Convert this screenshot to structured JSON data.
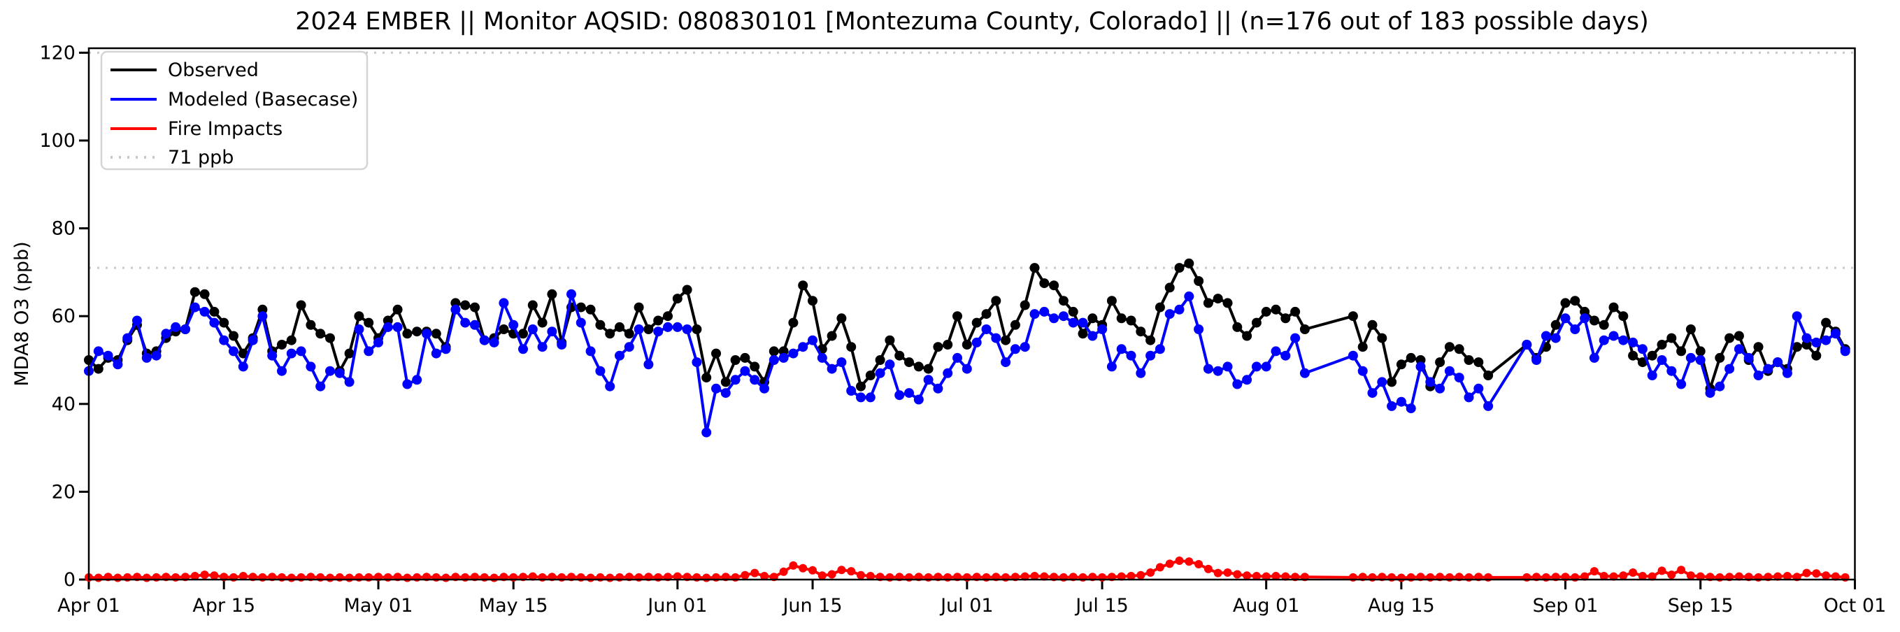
{
  "title": "2024 EMBER || Monitor AQSID: 080830101 [Montezuma County, Colorado] || (n=176 out of 183 possible days)",
  "legend": {
    "items": [
      {
        "label": "Observed",
        "color": "#000000",
        "style": "solid"
      },
      {
        "label": "Modeled (Basecase)",
        "color": "#0000ff",
        "style": "solid"
      },
      {
        "label": "Fire Impacts",
        "color": "#ff0000",
        "style": "solid"
      },
      {
        "label": "71 ppb",
        "color": "#c9c9c9",
        "style": "dotted"
      }
    ]
  },
  "chart_data": {
    "type": "line",
    "title": "2024 EMBER || Monitor AQSID: 080830101 [Montezuma County, Colorado] || (n=176 out of 183 possible days)",
    "xlabel": "",
    "ylabel": "MDA8 O3 (ppb)",
    "ylim": [
      0,
      121
    ],
    "yticks": [
      0,
      20,
      40,
      60,
      80,
      100,
      120
    ],
    "grid": false,
    "legend_position": "upper left",
    "start_date": "Apr 01",
    "end_date": "Oct 01",
    "n_days_plotted": 176,
    "n_days_possible": 183,
    "missing_days": [
      "Aug 06",
      "Aug 07",
      "Aug 08",
      "Aug 09",
      "Aug 25",
      "Aug 26",
      "Aug 27"
    ],
    "xticks": [
      {
        "day": 0,
        "label": "Apr 01"
      },
      {
        "day": 14,
        "label": "Apr 15"
      },
      {
        "day": 30,
        "label": "May 01"
      },
      {
        "day": 44,
        "label": "May 15"
      },
      {
        "day": 61,
        "label": "Jun 01"
      },
      {
        "day": 75,
        "label": "Jun 15"
      },
      {
        "day": 91,
        "label": "Jul 01"
      },
      {
        "day": 105,
        "label": "Jul 15"
      },
      {
        "day": 122,
        "label": "Aug 01"
      },
      {
        "day": 136,
        "label": "Aug 15"
      },
      {
        "day": 153,
        "label": "Sep 01"
      },
      {
        "day": 167,
        "label": "Sep 15"
      },
      {
        "day": 183,
        "label": "Oct 01"
      }
    ],
    "reference_lines": [
      {
        "value": 71,
        "label": "71 ppb",
        "color": "#c9c9c9",
        "style": "dotted"
      },
      {
        "value": 120,
        "label": "",
        "color": "#c9c9c9",
        "style": "dotted"
      }
    ],
    "series": [
      {
        "name": "Observed",
        "color": "#000000",
        "marker_radius": 7,
        "values": [
          50,
          48,
          50.5,
          50,
          54.5,
          58,
          51.5,
          52,
          55,
          56.5,
          57,
          65.5,
          65,
          61,
          58.5,
          55.5,
          51.5,
          55,
          61.5,
          52,
          53.5,
          54.5,
          62.5,
          58,
          56,
          55,
          47.5,
          51.5,
          60,
          58.5,
          55,
          59,
          61.5,
          56,
          56.5,
          56.5,
          56,
          53,
          63,
          62.5,
          62,
          54.5,
          55,
          57,
          56,
          56,
          62.5,
          58.5,
          65,
          54,
          62,
          62,
          61.5,
          58,
          56,
          57.5,
          56,
          62,
          57,
          59,
          60,
          64,
          66,
          57,
          46,
          51.5,
          45,
          50,
          50.5,
          48.5,
          45,
          52,
          52,
          58.5,
          67,
          63.5,
          52.5,
          55.5,
          59.5,
          53,
          44,
          46.5,
          50,
          54.5,
          51,
          49.5,
          48.5,
          48,
          53,
          53.5,
          60,
          53.5,
          58.5,
          60.5,
          63.5,
          54.5,
          58,
          62.5,
          71,
          67.5,
          67,
          63.5,
          61,
          56,
          59.5,
          58,
          63.5,
          59.5,
          59,
          56.5,
          54.5,
          62,
          66.5,
          71,
          72,
          68,
          63,
          64,
          63,
          57.5,
          55.5,
          58.5,
          61,
          61.5,
          59.5,
          61,
          57,
          null,
          null,
          null,
          null,
          60,
          53,
          58,
          55,
          45,
          49,
          50.5,
          50,
          44,
          49.5,
          53,
          52.5,
          50,
          49.5,
          46.5,
          null,
          null,
          null,
          53.5,
          50.5,
          53,
          58,
          63,
          63.5,
          61,
          59,
          58,
          62,
          60,
          51,
          49.5,
          51,
          53.5,
          55,
          52,
          57,
          52,
          43.5,
          50.5,
          55,
          55.5,
          50,
          53,
          47.5,
          49.5,
          48,
          53,
          53.5,
          51,
          58.5,
          56.5,
          52.5
        ]
      },
      {
        "name": "Modeled (Basecase)",
        "color": "#0000ff",
        "marker_radius": 7,
        "values": [
          47.5,
          52,
          51,
          49,
          55,
          59,
          50.5,
          51,
          56,
          57.5,
          57,
          62,
          61,
          58.5,
          54.5,
          52,
          48.5,
          54.5,
          60,
          51,
          47.5,
          51.5,
          52,
          48.5,
          44,
          47.5,
          47,
          45,
          57,
          52,
          54,
          57.5,
          57.5,
          44.5,
          45.5,
          56,
          51.5,
          52.5,
          61.5,
          58.5,
          58,
          54.5,
          54,
          63,
          58,
          52.5,
          57,
          53,
          56.5,
          53.5,
          65,
          58.5,
          52,
          47.5,
          44,
          51,
          53,
          57,
          49,
          56.5,
          57.5,
          57.5,
          57,
          49.5,
          33.5,
          43.5,
          42.5,
          45.5,
          47.5,
          45.5,
          43.5,
          50,
          50.5,
          51.5,
          53,
          54.5,
          50.5,
          48,
          49.5,
          43,
          41.5,
          41.5,
          47,
          49,
          42,
          42.5,
          41,
          45.5,
          43.5,
          47,
          50.5,
          48,
          54,
          57,
          55,
          49.5,
          52.5,
          53,
          60.5,
          61,
          59.5,
          60,
          58.5,
          58.5,
          55.5,
          57,
          48.5,
          52.5,
          51,
          47,
          51,
          52.5,
          60.5,
          61.5,
          64.5,
          57,
          48,
          47.5,
          48.5,
          44.5,
          45.5,
          48.5,
          48.5,
          52,
          51,
          55,
          47,
          null,
          null,
          null,
          null,
          51,
          47.5,
          42.5,
          45,
          39.5,
          40.5,
          39,
          48.5,
          45,
          43.5,
          47.5,
          46,
          41.5,
          43.5,
          39.5,
          null,
          null,
          null,
          53.5,
          50,
          55.5,
          55,
          59.5,
          57,
          59.5,
          50.5,
          54.5,
          55.5,
          54.5,
          54,
          52.5,
          46.5,
          50,
          47.5,
          44.5,
          50.5,
          50,
          42.5,
          44,
          48,
          52.5,
          50.5,
          46.5,
          48,
          49.5,
          47,
          60,
          55,
          54,
          54.5,
          56,
          52
        ]
      },
      {
        "name": "Fire Impacts",
        "color": "#ff0000",
        "marker_radius": 6,
        "values": [
          0.5,
          0.4,
          0.6,
          0.4,
          0.5,
          0.6,
          0.4,
          0.5,
          0.6,
          0.5,
          0.6,
          0.8,
          1.1,
          0.9,
          0.6,
          0.5,
          0.8,
          0.6,
          0.5,
          0.6,
          0.5,
          0.4,
          0.5,
          0.6,
          0.5,
          0.4,
          0.5,
          0.4,
          0.5,
          0.5,
          0.6,
          0.5,
          0.6,
          0.4,
          0.5,
          0.6,
          0.5,
          0.4,
          0.6,
          0.5,
          0.6,
          0.5,
          0.4,
          0.6,
          0.5,
          0.6,
          0.7,
          0.5,
          0.6,
          0.5,
          0.6,
          0.5,
          0.4,
          0.5,
          0.4,
          0.5,
          0.6,
          0.5,
          0.6,
          0.5,
          0.6,
          0.7,
          0.6,
          0.5,
          0.4,
          0.5,
          0.6,
          0.5,
          1.0,
          1.5,
          0.8,
          0.6,
          1.8,
          3.2,
          2.6,
          2.1,
          0.9,
          1.2,
          2.2,
          1.9,
          1.0,
          0.8,
          0.6,
          0.5,
          0.6,
          0.5,
          0.6,
          0.5,
          0.6,
          0.5,
          0.6,
          0.5,
          0.6,
          0.5,
          0.6,
          0.5,
          0.6,
          0.7,
          0.8,
          0.7,
          0.6,
          0.5,
          0.6,
          0.5,
          0.6,
          0.5,
          0.6,
          0.7,
          0.8,
          1.0,
          1.6,
          2.8,
          3.6,
          4.3,
          4.1,
          3.5,
          2.4,
          1.5,
          1.6,
          1.2,
          0.9,
          0.8,
          0.7,
          0.8,
          0.7,
          0.6,
          0.6,
          null,
          null,
          null,
          null,
          0.5,
          0.6,
          0.5,
          0.6,
          0.5,
          0.4,
          0.5,
          0.6,
          0.5,
          0.6,
          0.5,
          0.6,
          0.5,
          0.6,
          0.5,
          null,
          null,
          null,
          0.5,
          0.6,
          0.5,
          0.6,
          0.6,
          0.5,
          0.7,
          1.9,
          0.8,
          0.7,
          0.9,
          1.6,
          0.8,
          0.7,
          2.0,
          1.1,
          2.2,
          0.9,
          0.7,
          0.6,
          0.5,
          0.6,
          0.7,
          0.6,
          0.5,
          0.6,
          0.7,
          0.8,
          0.6,
          1.5,
          1.4,
          0.9,
          0.7,
          0.5
        ]
      }
    ]
  }
}
